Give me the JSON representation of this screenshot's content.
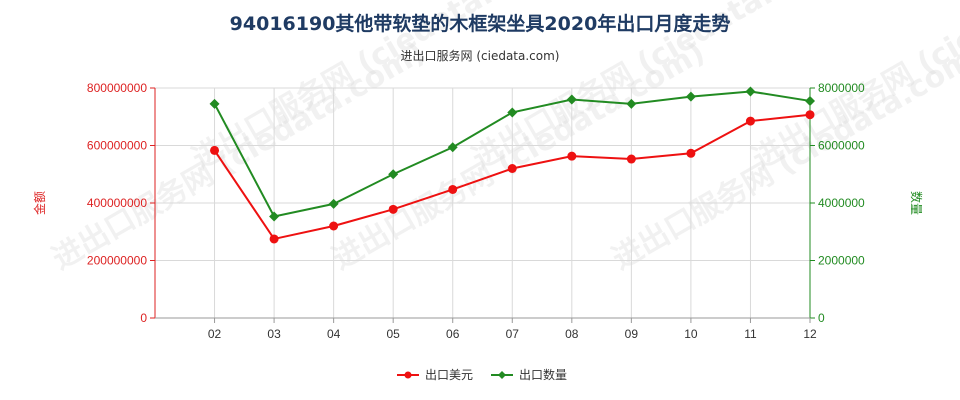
{
  "chart_data": {
    "type": "line",
    "title": "94016190其他带软垫的木框架坐具2020年出口月度走势",
    "subtitle": "进出口服务网 (ciedata.com)",
    "watermark": "进出口服务网 (ciedata.com)",
    "categories": [
      "02",
      "03",
      "04",
      "05",
      "06",
      "07",
      "08",
      "09",
      "10",
      "11",
      "12"
    ],
    "y_left": {
      "label": "金额",
      "range": [
        0,
        800000000
      ],
      "ticks": [
        "0",
        "200000000",
        "400000000",
        "600000000",
        "800000000"
      ],
      "color": "#dd2222"
    },
    "y_right": {
      "label": "数量",
      "range": [
        0,
        8000000
      ],
      "ticks": [
        "0",
        "2000000",
        "4000000",
        "6000000",
        "8000000"
      ],
      "color": "#228b22"
    },
    "grid": true,
    "legend_position": "bottom",
    "series": [
      {
        "name": "出口美元",
        "axis": "left",
        "marker": "circle",
        "color": "#ee1111",
        "values": [
          583000000,
          275000000,
          320000000,
          378000000,
          447000000,
          520000000,
          563000000,
          553000000,
          573000000,
          685000000,
          707000000
        ]
      },
      {
        "name": "出口数量",
        "axis": "right",
        "marker": "diamond",
        "color": "#228b22",
        "values": [
          7450000,
          3530000,
          3970000,
          5000000,
          5940000,
          7150000,
          7600000,
          7450000,
          7700000,
          7880000,
          7550000
        ]
      }
    ]
  }
}
